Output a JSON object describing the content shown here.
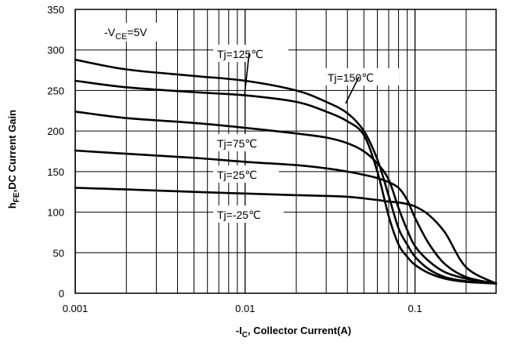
{
  "chart_data": {
    "type": "line",
    "title": "",
    "xlabel": {
      "prefix": "-I",
      "sub": "C",
      "rest": ", Collector Current(A)"
    },
    "ylabel": {
      "prefix": "h",
      "sub": "FE",
      "rest": ",DC  Current Gain"
    },
    "x_scale": "log",
    "xlim": [
      0.001,
      0.3
    ],
    "ylim": [
      0,
      350
    ],
    "grid": true,
    "legend": "none",
    "x_ticks": [
      {
        "value": 0.001,
        "label": "0.001"
      },
      {
        "value": 0.01,
        "label": "0.01"
      },
      {
        "value": 0.1,
        "label": "0.1"
      }
    ],
    "y_ticks": [
      {
        "value": 0,
        "label": "0"
      },
      {
        "value": 50,
        "label": "50"
      },
      {
        "value": 100,
        "label": "100"
      },
      {
        "value": 150,
        "label": "150"
      },
      {
        "value": 200,
        "label": "200"
      },
      {
        "value": 250,
        "label": "250"
      },
      {
        "value": 300,
        "label": "300"
      },
      {
        "value": 350,
        "label": "350"
      }
    ],
    "condition": {
      "prefix": "-V",
      "sub": "CE",
      "rest": "=5V"
    },
    "series": [
      {
        "label": "Tj=125℃",
        "color": "#000000",
        "x": [
          0.001,
          0.002,
          0.005,
          0.01,
          0.02,
          0.03,
          0.04,
          0.05,
          0.06,
          0.07,
          0.08,
          0.09,
          0.1,
          0.12,
          0.15,
          0.2,
          0.3
        ],
        "y": [
          288,
          276,
          268,
          262,
          250,
          236,
          222,
          200,
          165,
          120,
          80,
          60,
          45,
          30,
          20,
          15,
          12
        ]
      },
      {
        "label": "Tj=150℃",
        "color": "#000000",
        "x": [
          0.001,
          0.002,
          0.005,
          0.01,
          0.02,
          0.03,
          0.04,
          0.05,
          0.06,
          0.07,
          0.08,
          0.09,
          0.1,
          0.12,
          0.15,
          0.2,
          0.3
        ],
        "y": [
          262,
          254,
          248,
          244,
          236,
          224,
          212,
          195,
          150,
          95,
          60,
          45,
          35,
          25,
          18,
          14,
          12
        ]
      },
      {
        "label": "Tj=75℃",
        "color": "#000000",
        "x": [
          0.001,
          0.002,
          0.005,
          0.01,
          0.02,
          0.03,
          0.04,
          0.05,
          0.06,
          0.07,
          0.08,
          0.09,
          0.1,
          0.12,
          0.15,
          0.2,
          0.3
        ],
        "y": [
          224,
          216,
          210,
          204,
          197,
          192,
          185,
          175,
          160,
          140,
          105,
          78,
          58,
          40,
          26,
          18,
          12
        ]
      },
      {
        "label": "Tj=25℃",
        "color": "#000000",
        "x": [
          0.001,
          0.002,
          0.005,
          0.01,
          0.02,
          0.03,
          0.04,
          0.05,
          0.06,
          0.07,
          0.08,
          0.09,
          0.1,
          0.12,
          0.15,
          0.2,
          0.3
        ],
        "y": [
          176,
          172,
          167,
          162,
          158,
          154,
          150,
          146,
          142,
          137,
          130,
          115,
          93,
          62,
          36,
          20,
          12
        ]
      },
      {
        "label": "Tj=-25℃",
        "color": "#000000",
        "x": [
          0.001,
          0.002,
          0.005,
          0.01,
          0.02,
          0.03,
          0.04,
          0.05,
          0.06,
          0.07,
          0.08,
          0.09,
          0.1,
          0.12,
          0.15,
          0.2,
          0.3
        ],
        "y": [
          130,
          128,
          125,
          123,
          121,
          120,
          119,
          117,
          115,
          113,
          112,
          110,
          107,
          97,
          75,
          32,
          12
        ]
      }
    ]
  }
}
